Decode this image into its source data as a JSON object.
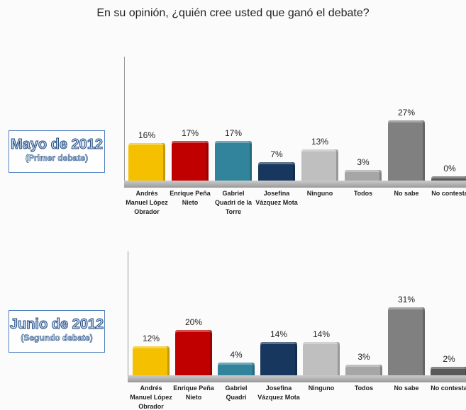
{
  "title": "En su opinión, ¿quién cree usted que ganó el debate?",
  "chart_data": [
    {
      "type": "bar",
      "label": "Mayo de 2012",
      "sublabel": "(Primer debate)",
      "categories": [
        "Andrés Manuel López Obrador",
        "Enrique Peña Nieto",
        "Gabriel Quadri de la Torre",
        "Josefina Vázquez Mota",
        "Ninguno",
        "Todos",
        "No sabe",
        "No contesta"
      ],
      "values": [
        16,
        17,
        17,
        7,
        13,
        3,
        27,
        0
      ],
      "value_labels": [
        "16%",
        "17%",
        "17%",
        "7%",
        "13%",
        "3%",
        "27%",
        "0%"
      ],
      "colors": [
        "#f5c000",
        "#c00000",
        "#31849b",
        "#17375e",
        "#bfbfbf",
        "#a6a6a6",
        "#808080",
        "#595959"
      ],
      "ylim": [
        0,
        60
      ]
    },
    {
      "type": "bar",
      "label": "Junio de 2012",
      "sublabel": "(Segundo debate)",
      "categories": [
        "Andrés Manuel López Obrador",
        "Enrique Peña Nieto",
        "Gabriel Quadri",
        "Josefina Vázquez Mota",
        "Ninguno",
        "Todos",
        "No sabe",
        "No contesta"
      ],
      "values": [
        12,
        20,
        4,
        14,
        14,
        3,
        31,
        2
      ],
      "value_labels": [
        "12%",
        "20%",
        "4%",
        "14%",
        "14%",
        "3%",
        "31%",
        "2%"
      ],
      "colors": [
        "#f5c000",
        "#c00000",
        "#31849b",
        "#17375e",
        "#bfbfbf",
        "#a6a6a6",
        "#808080",
        "#595959"
      ],
      "ylim": [
        0,
        60
      ]
    }
  ]
}
